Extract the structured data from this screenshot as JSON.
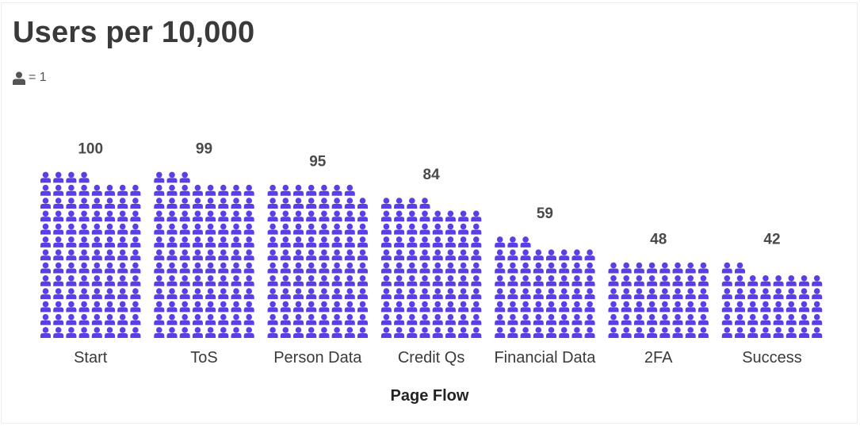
{
  "title": "Users per 10,000",
  "legend": {
    "icon": "person-icon",
    "text": "= 1"
  },
  "colors": {
    "icon": "#5a3ee6",
    "text": "#3a3a3a",
    "label": "#4a4a4a",
    "legend_icon": "#555555"
  },
  "chart_data": {
    "type": "pictograph",
    "title": "Users per 10,000",
    "xlabel": "Page Flow",
    "ylabel": "",
    "unit_icon": "person-icon",
    "unit_value": 1,
    "icons_per_row": 8,
    "categories": [
      "Start",
      "ToS",
      "Person Data",
      "Credit Qs",
      "Financial Data",
      "2FA",
      "Success"
    ],
    "values": [
      100,
      99,
      95,
      84,
      59,
      48,
      42
    ],
    "value_labels": [
      "100",
      "99",
      "95",
      "84",
      "59",
      "48",
      "42"
    ],
    "grid": false
  }
}
